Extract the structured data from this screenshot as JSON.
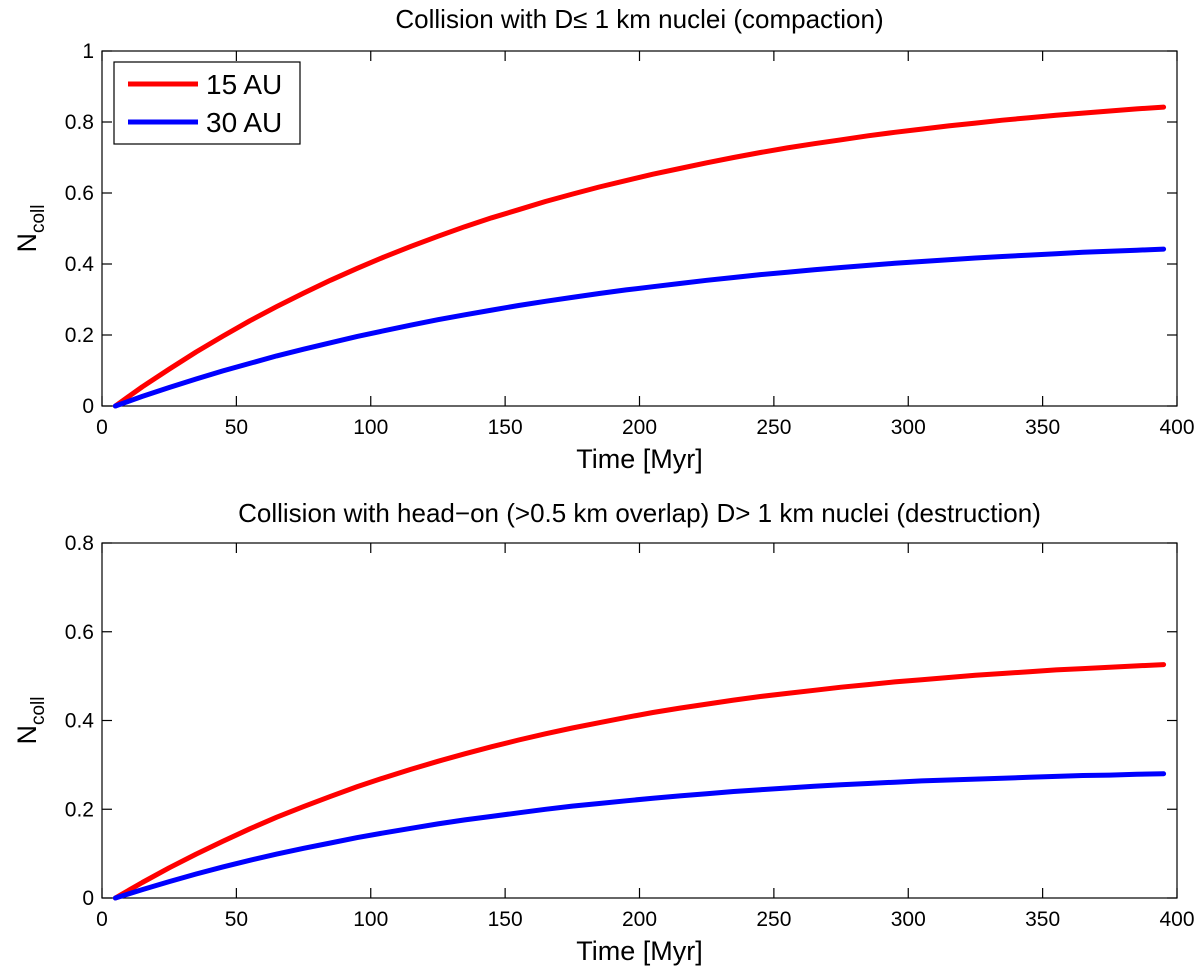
{
  "chart_data": [
    {
      "type": "line",
      "title": "Collision with D≤ 1 km nuclei (compaction)",
      "xlabel": "Time [Myr]",
      "ylabel": "N",
      "ylabel_sub": "coll",
      "xlim": [
        0,
        400
      ],
      "ylim": [
        0,
        1
      ],
      "xticks": [
        0,
        50,
        100,
        150,
        200,
        250,
        300,
        350,
        400
      ],
      "yticks": [
        0,
        0.2,
        0.4,
        0.6,
        0.8,
        1
      ],
      "ytick_labels": [
        "0",
        "0.2",
        "0.4",
        "0.6",
        "0.8",
        "1"
      ],
      "grid": false,
      "legend": {
        "position": "top-left"
      },
      "x": [
        5,
        15,
        25,
        35,
        45,
        55,
        65,
        75,
        85,
        95,
        105,
        115,
        125,
        135,
        145,
        155,
        165,
        175,
        185,
        195,
        205,
        215,
        225,
        235,
        245,
        255,
        265,
        275,
        285,
        295,
        305,
        315,
        325,
        335,
        345,
        355,
        365,
        375,
        385,
        395
      ],
      "series": [
        {
          "name": "15 AU",
          "color": "#ff0000",
          "values": [
            0.0,
            0.054,
            0.104,
            0.152,
            0.197,
            0.24,
            0.28,
            0.318,
            0.354,
            0.388,
            0.42,
            0.45,
            0.478,
            0.505,
            0.53,
            0.553,
            0.576,
            0.597,
            0.617,
            0.635,
            0.653,
            0.669,
            0.685,
            0.7,
            0.714,
            0.727,
            0.739,
            0.75,
            0.761,
            0.771,
            0.78,
            0.789,
            0.797,
            0.805,
            0.812,
            0.819,
            0.825,
            0.831,
            0.837,
            0.842
          ]
        },
        {
          "name": "30 AU",
          "color": "#0000ff",
          "values": [
            0.0,
            0.027,
            0.052,
            0.076,
            0.099,
            0.12,
            0.141,
            0.16,
            0.178,
            0.196,
            0.212,
            0.228,
            0.243,
            0.257,
            0.27,
            0.283,
            0.295,
            0.306,
            0.317,
            0.327,
            0.336,
            0.345,
            0.354,
            0.362,
            0.37,
            0.377,
            0.384,
            0.39,
            0.396,
            0.402,
            0.407,
            0.412,
            0.417,
            0.421,
            0.425,
            0.429,
            0.433,
            0.436,
            0.439,
            0.442
          ]
        }
      ]
    },
    {
      "type": "line",
      "title": "Collision with head−on (>0.5 km overlap) D> 1 km nuclei (destruction)",
      "xlabel": "Time [Myr]",
      "ylabel": "N",
      "ylabel_sub": "coll",
      "xlim": [
        0,
        400
      ],
      "ylim": [
        0,
        0.8
      ],
      "xticks": [
        0,
        50,
        100,
        150,
        200,
        250,
        300,
        350,
        400
      ],
      "yticks": [
        0,
        0.2,
        0.4,
        0.6,
        0.8
      ],
      "ytick_labels": [
        "0",
        "0.2",
        "0.4",
        "0.6",
        "0.8"
      ],
      "grid": false,
      "x": [
        5,
        15,
        25,
        35,
        45,
        55,
        65,
        75,
        85,
        95,
        105,
        115,
        125,
        135,
        145,
        155,
        165,
        175,
        185,
        195,
        205,
        215,
        225,
        235,
        245,
        255,
        265,
        275,
        285,
        295,
        305,
        315,
        325,
        335,
        345,
        355,
        365,
        375,
        385,
        395
      ],
      "series": [
        {
          "color": "#ff0000",
          "values": [
            0.0,
            0.035,
            0.068,
            0.099,
            0.128,
            0.156,
            0.182,
            0.206,
            0.229,
            0.251,
            0.271,
            0.29,
            0.308,
            0.325,
            0.341,
            0.356,
            0.37,
            0.383,
            0.395,
            0.407,
            0.418,
            0.428,
            0.437,
            0.446,
            0.454,
            0.461,
            0.468,
            0.475,
            0.481,
            0.487,
            0.492,
            0.497,
            0.502,
            0.506,
            0.51,
            0.514,
            0.517,
            0.52,
            0.523,
            0.526
          ]
        },
        {
          "color": "#0000ff",
          "values": [
            0.0,
            0.019,
            0.037,
            0.054,
            0.07,
            0.085,
            0.099,
            0.112,
            0.124,
            0.136,
            0.147,
            0.157,
            0.167,
            0.176,
            0.184,
            0.192,
            0.2,
            0.207,
            0.213,
            0.219,
            0.225,
            0.23,
            0.235,
            0.24,
            0.244,
            0.248,
            0.252,
            0.255,
            0.258,
            0.261,
            0.264,
            0.266,
            0.268,
            0.27,
            0.272,
            0.274,
            0.276,
            0.277,
            0.279,
            0.28
          ]
        }
      ]
    }
  ]
}
